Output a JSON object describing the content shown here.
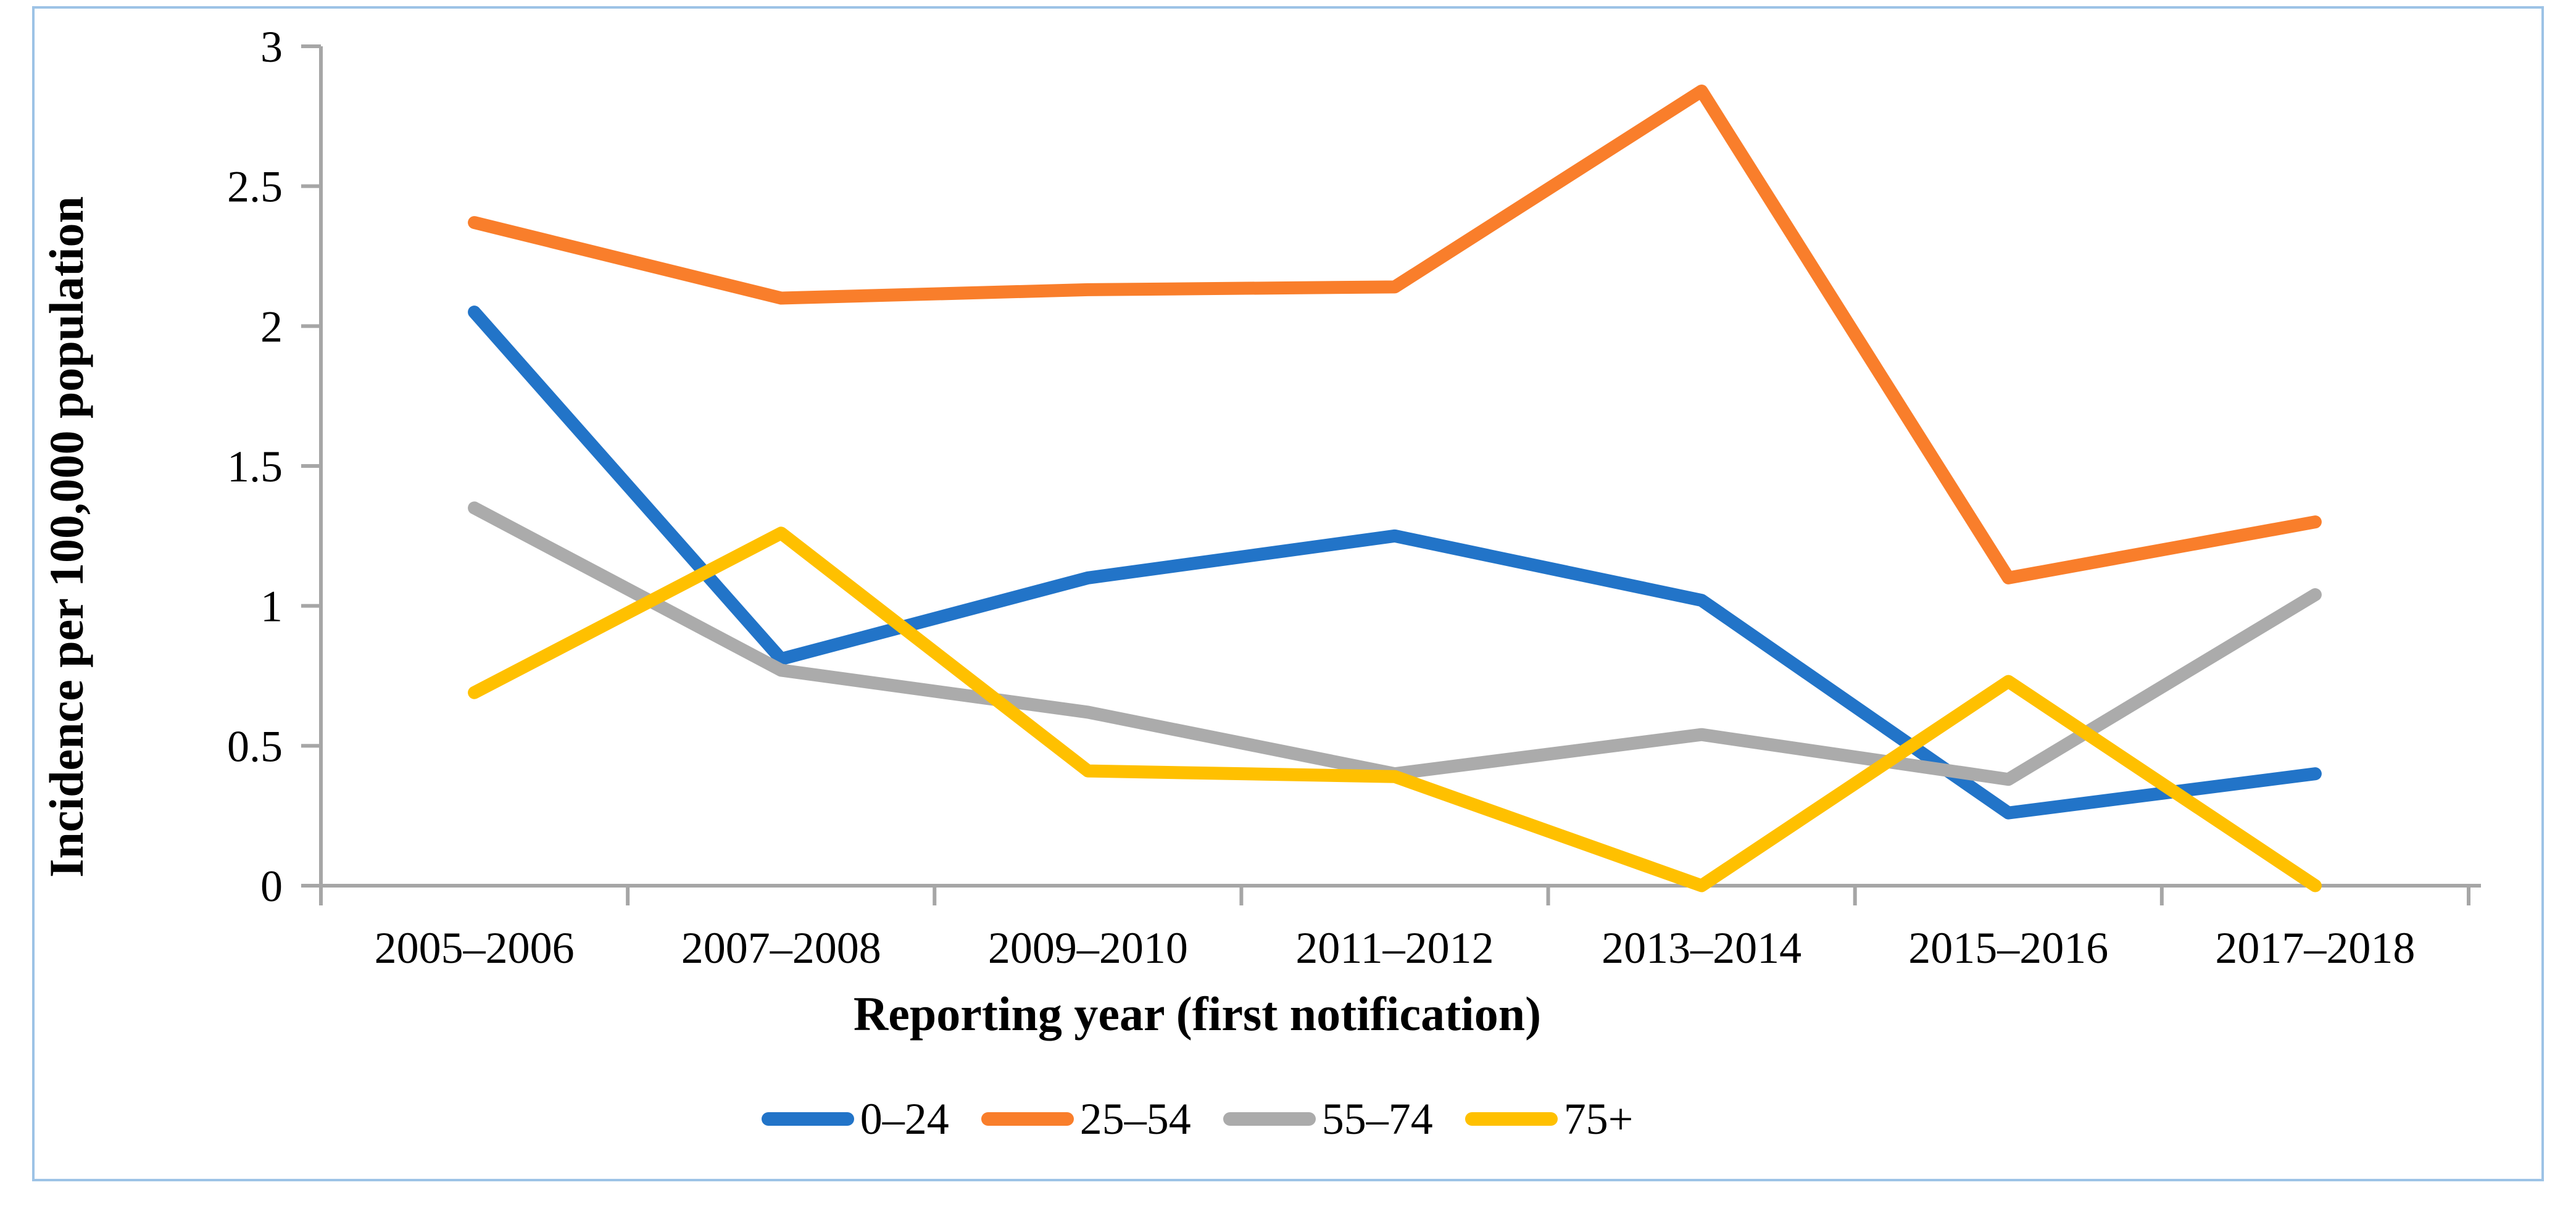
{
  "figure": {
    "background": "#FFFFFF",
    "border_color": "#9DC3E6"
  },
  "chart_data": {
    "type": "line",
    "title": "",
    "xlabel": "Reporting year (first notification)",
    "ylabel": "Incidence per 100,000 population",
    "categories": [
      "2005–2006",
      "2007–2008",
      "2009–2010",
      "2011–2012",
      "2013–2014",
      "2015–2016",
      "2017–2018"
    ],
    "series": [
      {
        "name": "0–24",
        "color": "#2274C8",
        "values": [
          2.05,
          0.81,
          1.1,
          1.25,
          1.02,
          0.26,
          0.4
        ]
      },
      {
        "name": "25–54",
        "color": "#F97E2B",
        "values": [
          2.37,
          2.1,
          2.13,
          2.14,
          2.84,
          1.1,
          1.3
        ]
      },
      {
        "name": "55–74",
        "color": "#ABABAB",
        "values": [
          1.35,
          0.77,
          0.62,
          0.4,
          0.54,
          0.38,
          1.04
        ]
      },
      {
        "name": "75+",
        "color": "#FFC000",
        "values": [
          0.69,
          1.26,
          0.41,
          0.39,
          0.0,
          0.73,
          0.0
        ]
      }
    ],
    "ylim": [
      0,
      3
    ],
    "yticks": [
      0,
      0.5,
      1,
      1.5,
      2,
      2.5,
      3
    ],
    "ytick_labels": [
      "0",
      "0.5",
      "1",
      "1.5",
      "2",
      "2.5",
      "3"
    ],
    "grid": "off",
    "legend_position": "bottom-center",
    "axis_color": "#A6A6A6",
    "line_width": 21
  }
}
